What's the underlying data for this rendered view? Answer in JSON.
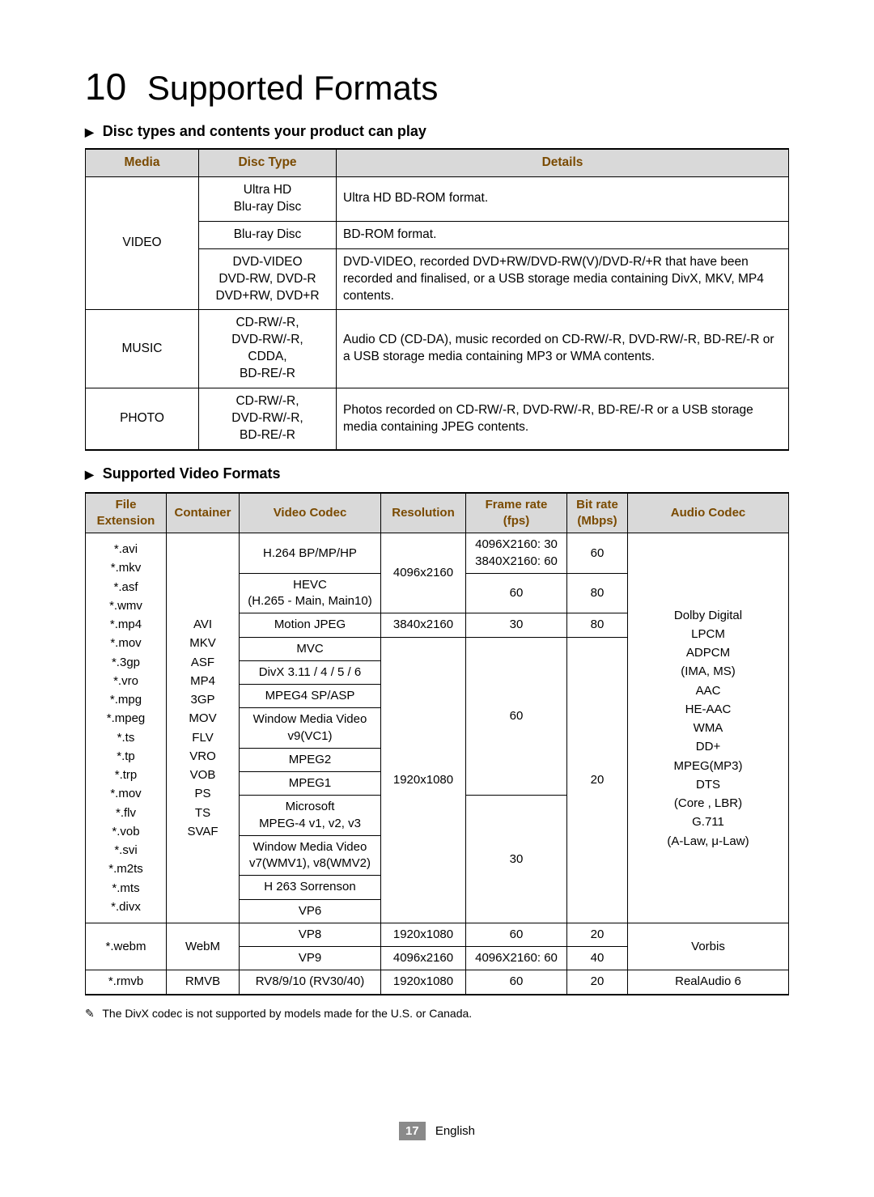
{
  "chapter": {
    "number": "10",
    "title": "Supported Formats"
  },
  "section1": {
    "title": "Disc types and contents your product can play",
    "headers": {
      "media": "Media",
      "disc_type": "Disc Type",
      "details": "Details"
    },
    "video": {
      "media": "VIDEO",
      "rows": [
        {
          "type": "Ultra HD\nBlu-ray Disc",
          "details": "Ultra HD BD-ROM format."
        },
        {
          "type": "Blu-ray Disc",
          "details": "BD-ROM format."
        },
        {
          "type": "DVD-VIDEO\nDVD-RW, DVD-R\nDVD+RW, DVD+R",
          "details": "DVD-VIDEO, recorded DVD+RW/DVD-RW(V)/DVD-R/+R that have been recorded and finalised, or a USB storage media containing DivX, MKV, MP4 contents."
        }
      ]
    },
    "music": {
      "media": "MUSIC",
      "type": "CD-RW/-R,\nDVD-RW/-R,\nCDDA,\nBD-RE/-R",
      "details": "Audio CD (CD-DA), music recorded on CD-RW/-R, DVD-RW/-R, BD-RE/-R or a USB storage media containing MP3 or WMA contents."
    },
    "photo": {
      "media": "PHOTO",
      "type": "CD-RW/-R,\nDVD-RW/-R,\nBD-RE/-R",
      "details": "Photos recorded on CD-RW/-R, DVD-RW/-R, BD-RE/-R or a USB storage media containing JPEG contents."
    }
  },
  "section2": {
    "title": "Supported Video Formats",
    "headers": {
      "ext": "File\nExtension",
      "container": "Container",
      "vcodec": "Video Codec",
      "res": "Resolution",
      "fps": "Frame rate\n(fps)",
      "bitrate": "Bit rate\n(Mbps)",
      "acodec": "Audio Codec"
    },
    "extensions": "*.avi\n*.mkv\n*.asf\n*.wmv\n*.mp4\n*.mov\n*.3gp\n*.vro\n*.mpg\n*.mpeg\n*.ts\n*.tp\n*.trp\n*.mov\n*.flv\n*.vob\n*.svi\n*.m2ts\n*.mts\n*.divx",
    "containers": "AVI\nMKV\nASF\nMP4\n3GP\nMOV\nFLV\nVRO\nVOB\nPS\nTS\nSVAF",
    "codecs": {
      "h264": "H.264 BP/MP/HP",
      "hevc": "HEVC\n(H.265 - Main, Main10)",
      "mjpeg": "Motion JPEG",
      "mvc": "MVC",
      "divx": "DivX 3.11 / 4 / 5 / 6",
      "mpeg4": "MPEG4 SP/ASP",
      "wmv9": "Window Media Video\nv9(VC1)",
      "mpeg2": "MPEG2",
      "mpeg1": "MPEG1",
      "msmpeg4": "Microsoft\nMPEG-4 v1, v2, v3",
      "wmv78": "Window Media Video\nv7(WMV1), v8(WMV2)",
      "h263": "H 263 Sorrenson",
      "vp6": "VP6",
      "vp8": "VP8",
      "vp9": "VP9",
      "rv": "RV8/9/10 (RV30/40)"
    },
    "res": {
      "4096": "4096x2160",
      "3840": "3840x2160",
      "1920": "1920x1080"
    },
    "fps": {
      "mixed4k": "4096X2160: 30\n3840X2160: 60",
      "60": "60",
      "30": "30",
      "vp9": "4096X2160: 60"
    },
    "bitrate": {
      "60": "60",
      "80": "80",
      "20": "20",
      "40": "40"
    },
    "acodec_main": "Dolby Digital\nLPCM\nADPCM\n(IMA, MS)\nAAC\nHE-AAC\nWMA\nDD+\nMPEG(MP3)\nDTS\n(Core , LBR)\nG.711\n(A-Law, μ-Law)",
    "webm": {
      "ext": "*.webm",
      "container": "WebM",
      "acodec": "Vorbis"
    },
    "rmvb": {
      "ext": "*.rmvb",
      "container": "RMVB",
      "acodec": "RealAudio 6"
    }
  },
  "note": "The DivX codec is not supported by models made for the U.S. or Canada.",
  "note_mark": "✎",
  "footer": {
    "page": "17",
    "lang": "English"
  },
  "tri": "▶",
  "colors": {
    "header_bg": "#d9d9d9",
    "header_text": "#7a4a00",
    "page_num_bg": "#8a8a8a",
    "text": "#000000",
    "bg": "#ffffff"
  }
}
